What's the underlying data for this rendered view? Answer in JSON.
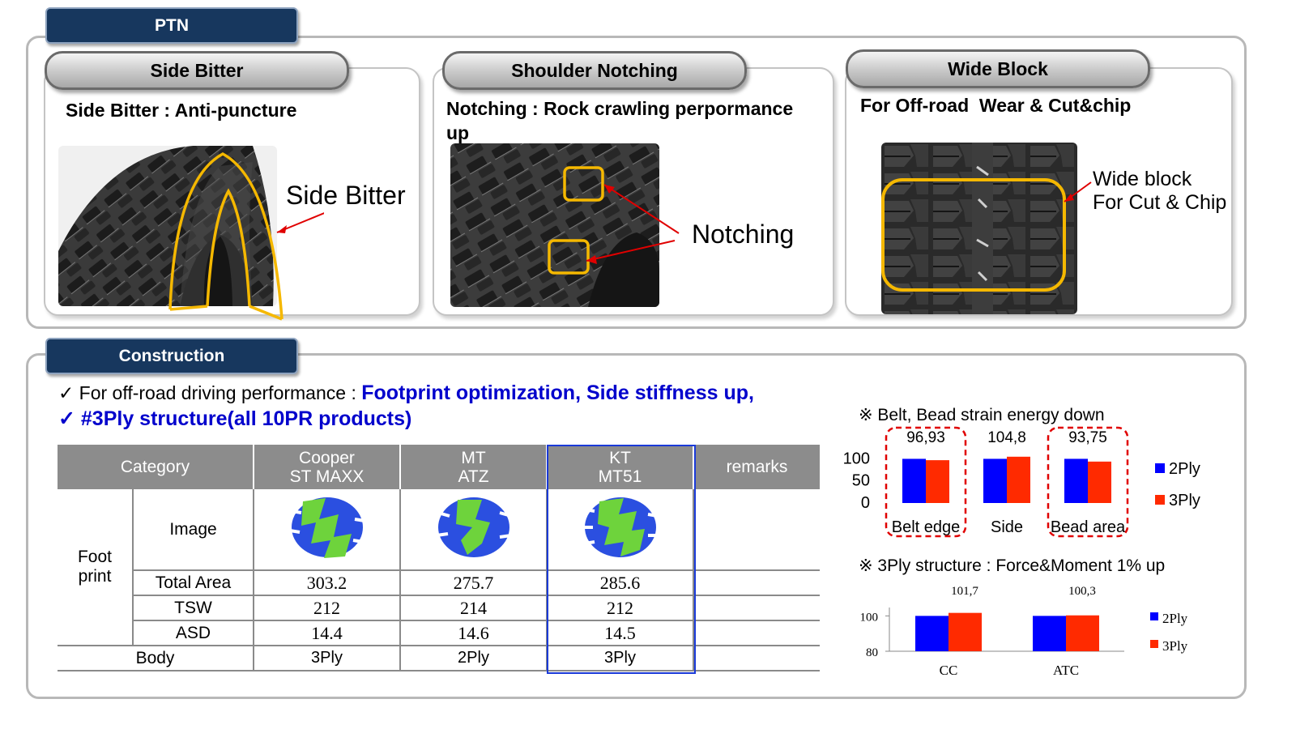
{
  "ptn": {
    "tab": "PTN",
    "cards": [
      {
        "pill": "Side Bitter",
        "title": "Side Bitter : Anti-puncture",
        "callouts": [
          "Side Bitter"
        ]
      },
      {
        "pill": "Shoulder Notching",
        "title": "Notching : Rock crawling perpormance up",
        "callouts": [
          "Notching"
        ]
      },
      {
        "pill": "Wide Block",
        "title": "For Off-road  Wear & Cut&chip",
        "callouts": [
          "Wide block",
          "For Cut & Chip"
        ]
      }
    ]
  },
  "construction": {
    "tab": "Construction",
    "bullet1_check": "✓",
    "bullet1_prefix": "For off-road driving performance :",
    "bullet1_highlight": "Footprint optimization, Side stiffness up,",
    "bullet2_check": "✓",
    "bullet2_highlight": "#3Ply structure(all 10PR products)",
    "table": {
      "headers": {
        "category": "Category",
        "remarks": "remarks"
      },
      "products": [
        {
          "line1": "Cooper",
          "line2": "ST MAXX"
        },
        {
          "line1": "MT",
          "line2": "ATZ"
        },
        {
          "line1": "KT",
          "line2": "MT51"
        }
      ],
      "group_label": "Foot print",
      "rows": [
        {
          "label": "Image"
        },
        {
          "label": "Total Area",
          "values": [
            "303.2",
            "275.7",
            "285.6"
          ]
        },
        {
          "label": "TSW",
          "values": [
            "212",
            "214",
            "212"
          ]
        },
        {
          "label": "ASD",
          "values": [
            "14.4",
            "14.6",
            "14.5"
          ]
        }
      ],
      "body_row": {
        "label": "Body",
        "values": [
          "3Ply",
          "2Ply",
          "3Ply"
        ]
      }
    }
  },
  "colors": {
    "navy": "#17375e",
    "highlight_text": "#0000cc",
    "series_2ply": "#0000ff",
    "series_3ply": "#ff2a00",
    "callout_yellow": "#f5b800",
    "footprint_blue": "#2b4fe0",
    "footprint_green": "#6ed33c"
  },
  "icons": [
    "checkmark-icon",
    "tire-photo-icon",
    "footprint-icon"
  ],
  "chart_data": [
    {
      "type": "bar",
      "title": "※ Belt, Bead strain energy down",
      "categories": [
        "Belt edge",
        "Side",
        "Bead area"
      ],
      "series": [
        {
          "name": "2Ply",
          "values": [
            100,
            100,
            100
          ]
        },
        {
          "name": "3Ply",
          "values": [
            96.93,
            104.8,
            93.75
          ]
        }
      ],
      "data_labels": [
        "96,93",
        "104,8",
        "93,75"
      ],
      "y_ticks": [
        "100",
        "50",
        "0"
      ],
      "ylim": [
        0,
        110
      ],
      "highlighted": [
        "Belt edge",
        "Bead area"
      ],
      "legend": "right"
    },
    {
      "type": "bar",
      "title": "※ 3Ply structure : Force&Moment 1% up",
      "categories": [
        "CC",
        "ATC"
      ],
      "series": [
        {
          "name": "2Ply",
          "values": [
            100,
            100
          ]
        },
        {
          "name": "3Ply",
          "values": [
            101.7,
            100.3
          ]
        }
      ],
      "data_labels": [
        "101,7",
        "100,3"
      ],
      "y_ticks": [
        "100",
        "80"
      ],
      "ylim": [
        80,
        102
      ],
      "legend": "right"
    }
  ]
}
